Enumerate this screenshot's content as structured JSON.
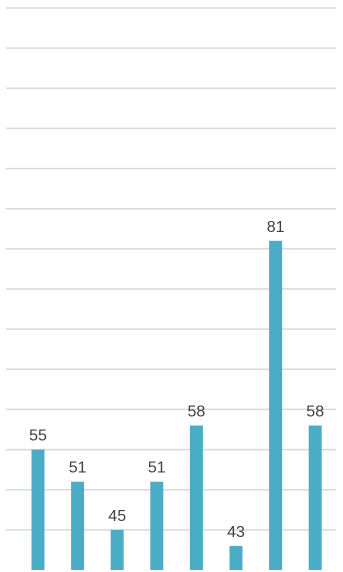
{
  "chart_data": {
    "type": "bar",
    "categories": [
      "",
      "",
      "",
      "",
      "",
      "",
      "",
      ""
    ],
    "values": [
      55,
      51,
      45,
      51,
      58,
      43,
      81,
      58
    ],
    "data_labels": [
      "55",
      "51",
      "45",
      "51",
      "58",
      "43",
      "81",
      "58"
    ],
    "title": "",
    "xlabel": "",
    "ylabel": "",
    "ylim": [
      40,
      110
    ],
    "grid": true,
    "legend": "none",
    "bar_color": "#4bacc6",
    "gridline_color": "#d9d9d9"
  }
}
